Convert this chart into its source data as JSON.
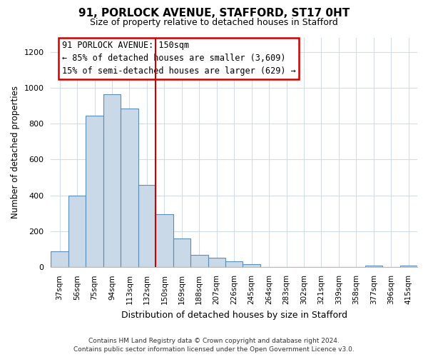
{
  "title": "91, PORLOCK AVENUE, STAFFORD, ST17 0HT",
  "subtitle": "Size of property relative to detached houses in Stafford",
  "xlabel": "Distribution of detached houses by size in Stafford",
  "ylabel": "Number of detached properties",
  "categories": [
    "37sqm",
    "56sqm",
    "75sqm",
    "94sqm",
    "113sqm",
    "132sqm",
    "150sqm",
    "169sqm",
    "188sqm",
    "207sqm",
    "226sqm",
    "245sqm",
    "264sqm",
    "283sqm",
    "302sqm",
    "321sqm",
    "339sqm",
    "358sqm",
    "377sqm",
    "396sqm",
    "415sqm"
  ],
  "values": [
    90,
    400,
    845,
    965,
    885,
    460,
    295,
    160,
    70,
    52,
    33,
    18,
    0,
    0,
    0,
    0,
    0,
    0,
    10,
    0,
    10
  ],
  "bar_color": "#c9d9e8",
  "bar_edge_color": "#5b8db8",
  "marker_index": 6,
  "marker_line_color": "#cc0000",
  "annotation_line1": "91 PORLOCK AVENUE: 150sqm",
  "annotation_line2": "← 85% of detached houses are smaller (3,609)",
  "annotation_line3": "15% of semi-detached houses are larger (629) →",
  "annotation_box_color": "#cc0000",
  "ylim": [
    0,
    1280
  ],
  "yticks": [
    0,
    200,
    400,
    600,
    800,
    1000,
    1200
  ],
  "footer_line1": "Contains HM Land Registry data © Crown copyright and database right 2024.",
  "footer_line2": "Contains public sector information licensed under the Open Government Licence v3.0.",
  "background_color": "#ffffff",
  "grid_color": "#d0dce8"
}
